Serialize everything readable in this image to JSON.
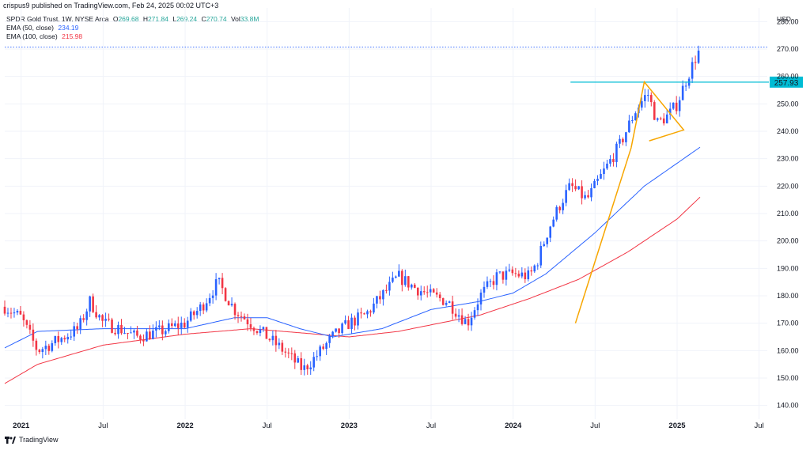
{
  "header": {
    "publisher": "crispus9 published on TradingView.com, Feb 24, 2025 00:02 UTC+3"
  },
  "legend": {
    "symbol": "SPDR Gold Trust, 1W, NYSE Arca",
    "o_label": "O",
    "o": "269.68",
    "h_label": "H",
    "h": "271.84",
    "l_label": "L",
    "l": "269.24",
    "c_label": "C",
    "c": "270.74",
    "vol_label": "Vol",
    "vol": "33.8M",
    "ema50_label": "EMA (50, close)",
    "ema50_value": "234.19",
    "ema100_label": "EMA (100, close)",
    "ema100_value": "215.98"
  },
  "footer": {
    "brand": "TradingView"
  },
  "colors": {
    "up": "#2962ff",
    "down": "#f23645",
    "ema50": "#2962ff",
    "ema100": "#f23645",
    "annotation": "#f7a600",
    "level": "#00bcd4"
  },
  "chart_data": {
    "type": "candlestick",
    "currency": "USD",
    "ylim": [
      135,
      285
    ],
    "yticks": [
      140,
      150,
      160,
      170,
      180,
      190,
      200,
      210,
      220,
      230,
      240,
      250,
      260,
      270,
      280
    ],
    "xlim": [
      2020.9,
      2025.55
    ],
    "xticks": [
      {
        "label": "2021",
        "x": 2021.0,
        "bold": true
      },
      {
        "label": "Jul",
        "x": 2021.5,
        "bold": false
      },
      {
        "label": "2022",
        "x": 2022.0,
        "bold": true
      },
      {
        "label": "Jul",
        "x": 2022.5,
        "bold": false
      },
      {
        "label": "2023",
        "x": 2023.0,
        "bold": true
      },
      {
        "label": "Jul",
        "x": 2023.5,
        "bold": false
      },
      {
        "label": "2024",
        "x": 2024.0,
        "bold": true
      },
      {
        "label": "Jul",
        "x": 2024.5,
        "bold": false
      },
      {
        "label": "2025",
        "x": 2025.0,
        "bold": true
      },
      {
        "label": "Jul",
        "x": 2025.5,
        "bold": false
      }
    ],
    "close_anchors": [
      [
        2020.9,
        176
      ],
      [
        2021.0,
        172
      ],
      [
        2021.1,
        160
      ],
      [
        2021.2,
        163
      ],
      [
        2021.35,
        168
      ],
      [
        2021.42,
        178
      ],
      [
        2021.5,
        170
      ],
      [
        2021.6,
        168
      ],
      [
        2021.7,
        165
      ],
      [
        2021.85,
        167
      ],
      [
        2022.0,
        170
      ],
      [
        2022.1,
        176
      ],
      [
        2022.2,
        185
      ],
      [
        2022.3,
        175
      ],
      [
        2022.4,
        170
      ],
      [
        2022.5,
        165
      ],
      [
        2022.6,
        160
      ],
      [
        2022.72,
        153
      ],
      [
        2022.8,
        158
      ],
      [
        2022.9,
        165
      ],
      [
        2023.0,
        170
      ],
      [
        2023.1,
        173
      ],
      [
        2023.2,
        180
      ],
      [
        2023.3,
        187
      ],
      [
        2023.4,
        183
      ],
      [
        2023.5,
        180
      ],
      [
        2023.6,
        178
      ],
      [
        2023.72,
        170
      ],
      [
        2023.8,
        180
      ],
      [
        2023.9,
        187
      ],
      [
        2024.0,
        188
      ],
      [
        2024.1,
        187
      ],
      [
        2024.15,
        193
      ],
      [
        2024.22,
        205
      ],
      [
        2024.3,
        215
      ],
      [
        2024.35,
        220
      ],
      [
        2024.45,
        215
      ],
      [
        2024.55,
        225
      ],
      [
        2024.65,
        235
      ],
      [
        2024.75,
        248
      ],
      [
        2024.82,
        254
      ],
      [
        2024.88,
        243
      ],
      [
        2024.95,
        246
      ],
      [
        2025.0,
        250
      ],
      [
        2025.05,
        258
      ],
      [
        2025.1,
        265
      ],
      [
        2025.14,
        270.74
      ]
    ],
    "ema50_anchors": [
      [
        2020.9,
        161
      ],
      [
        2021.1,
        167
      ],
      [
        2021.5,
        168
      ],
      [
        2022.0,
        168
      ],
      [
        2022.3,
        172
      ],
      [
        2022.5,
        172
      ],
      [
        2022.7,
        168
      ],
      [
        2022.9,
        165
      ],
      [
        2023.2,
        168
      ],
      [
        2023.5,
        175
      ],
      [
        2023.8,
        178
      ],
      [
        2024.0,
        181
      ],
      [
        2024.2,
        188
      ],
      [
        2024.5,
        203
      ],
      [
        2024.8,
        220
      ],
      [
        2025.14,
        234.19
      ]
    ],
    "ema100_anchors": [
      [
        2020.9,
        148
      ],
      [
        2021.1,
        155
      ],
      [
        2021.5,
        162
      ],
      [
        2022.0,
        166
      ],
      [
        2022.4,
        168
      ],
      [
        2022.8,
        166
      ],
      [
        2023.0,
        165
      ],
      [
        2023.3,
        167
      ],
      [
        2023.8,
        173
      ],
      [
        2024.1,
        179
      ],
      [
        2024.4,
        186
      ],
      [
        2024.7,
        196
      ],
      [
        2025.0,
        208
      ],
      [
        2025.14,
        215.98
      ]
    ],
    "level": {
      "value": 257.93,
      "label": "257.93",
      "x_start": 2024.35
    },
    "last_price_line": 270.74,
    "trendline": {
      "from": [
        2024.38,
        170
      ],
      "to": [
        2024.72,
        234
      ]
    },
    "triangle": [
      [
        2024.72,
        234
      ],
      [
        2024.8,
        258
      ],
      [
        2025.04,
        240.5
      ],
      [
        2024.83,
        236.5
      ]
    ]
  }
}
